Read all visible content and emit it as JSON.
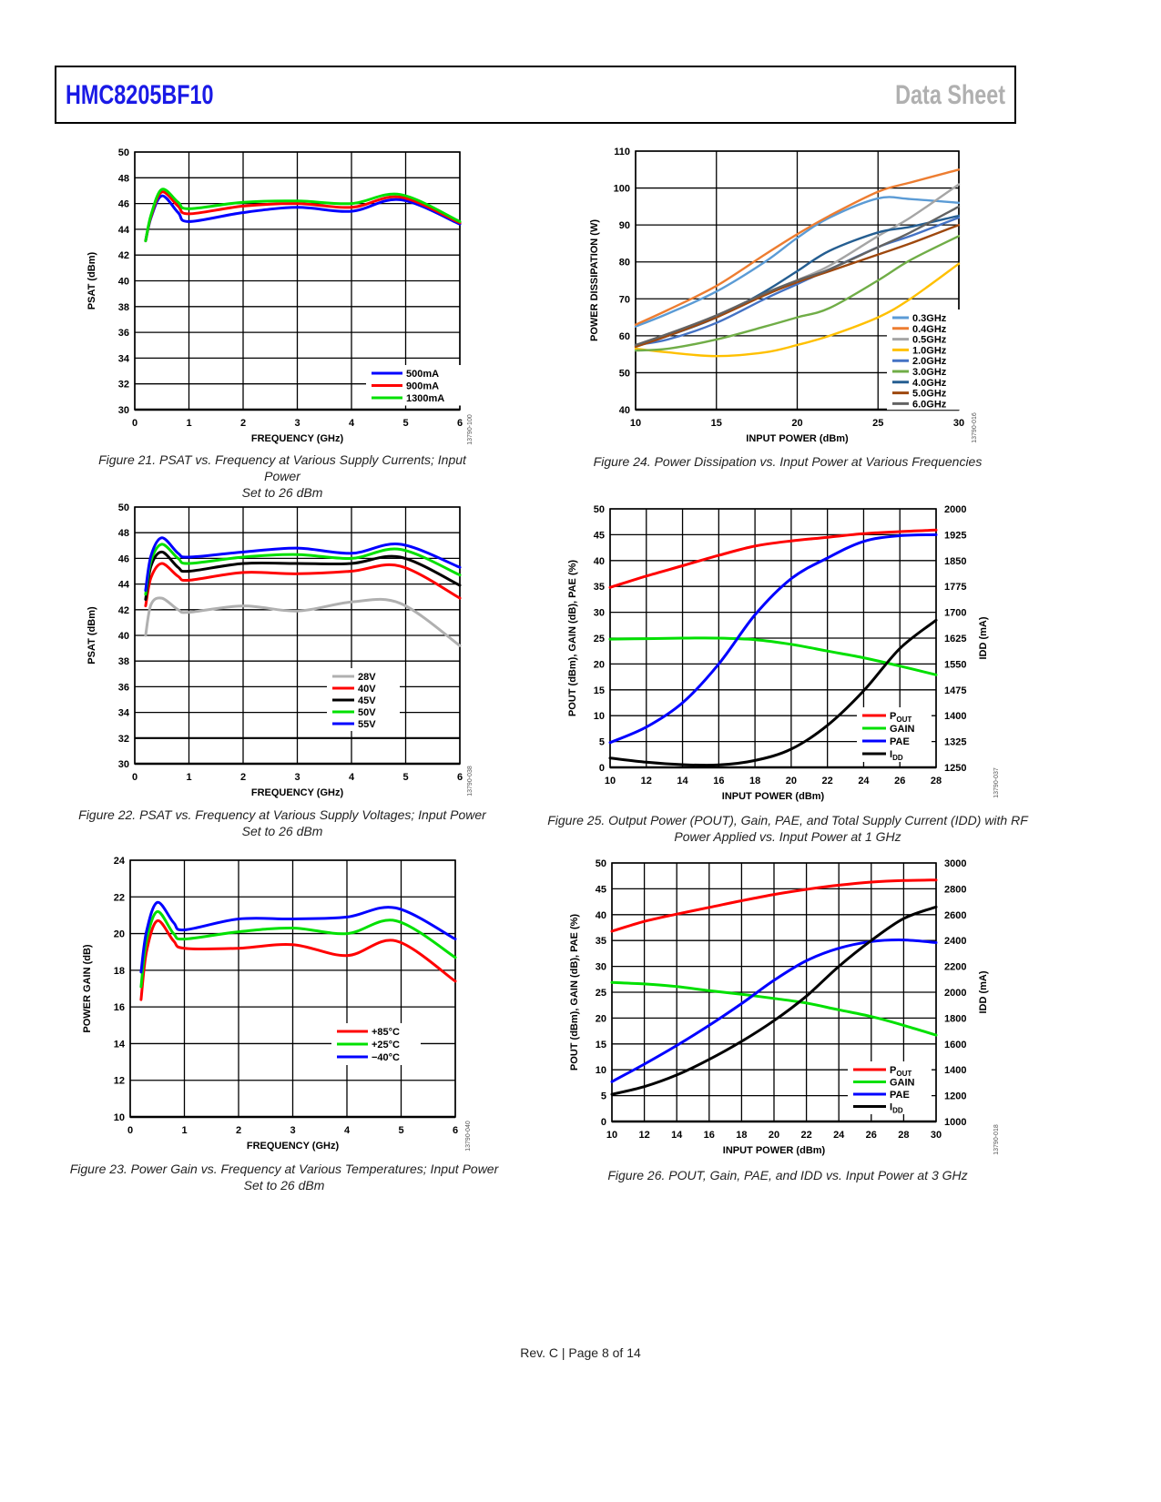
{
  "header": {
    "part_number": "HMC8205BF10",
    "doc_type": "Data Sheet"
  },
  "footer": {
    "text": "Rev. C | Page 8 of 14"
  },
  "figures": [
    {
      "id": "fig21",
      "caption_line1": "Figure 21. PSAT vs. Frequency at Various Supply Currents; Input Power",
      "caption_line2": "Set to 26 dBm",
      "code": "13790-100"
    },
    {
      "id": "fig22",
      "caption_line1": "Figure 22. PSAT vs. Frequency at Various Supply Voltages; Input Power",
      "caption_line2": "Set to 26 dBm",
      "code": "13790-038"
    },
    {
      "id": "fig23",
      "caption_line1": "Figure 23. Power Gain vs. Frequency at Various Temperatures; Input Power",
      "caption_line2": "Set to 26 dBm",
      "code": "13790-040"
    },
    {
      "id": "fig24",
      "caption_line1": "Figure 24. Power Dissipation vs. Input Power at Various Frequencies",
      "caption_line2": "",
      "code": "13790-016"
    },
    {
      "id": "fig25",
      "caption_line1": "Figure 25. Output Power (POUT), Gain, PAE, and Total Supply Current (IDD) with RF",
      "caption_line2": "Power Applied vs. Input Power at 1 GHz",
      "code": "13790-037"
    },
    {
      "id": "fig26",
      "caption_line1": "Figure 26. POUT, Gain, PAE, and IDD vs. Input Power at 3 GHz",
      "caption_line2": "",
      "code": "13790-018"
    }
  ],
  "chart_data": [
    {
      "id": "fig21",
      "type": "line",
      "title": "",
      "xlabel": "FREQUENCY (GHz)",
      "ylabel": "PSAT (dBm)",
      "xlim": [
        0,
        6
      ],
      "ylim": [
        30,
        50
      ],
      "xticks": [
        0,
        1,
        2,
        3,
        4,
        5,
        6
      ],
      "yticks": [
        30,
        32,
        34,
        36,
        38,
        40,
        42,
        44,
        46,
        48,
        50
      ],
      "grid": true,
      "legend": "bottom-right",
      "x": [
        0.2,
        0.3,
        0.5,
        0.8,
        1,
        2,
        3,
        4,
        4.9,
        6
      ],
      "series": [
        {
          "name": "500mA",
          "color": "#0000ff",
          "values": [
            43.1,
            44.9,
            46.6,
            45.3,
            44.6,
            45.3,
            45.7,
            45.4,
            46.3,
            44.4
          ]
        },
        {
          "name": "900mA",
          "color": "#ff0000",
          "values": [
            43.1,
            45.0,
            46.9,
            45.8,
            45.2,
            45.8,
            46.0,
            45.7,
            46.5,
            44.5
          ]
        },
        {
          "name": "1300mA",
          "color": "#00e000",
          "values": [
            43.1,
            45.1,
            47.1,
            46.1,
            45.6,
            46.1,
            46.2,
            46.0,
            46.7,
            44.6
          ]
        }
      ]
    },
    {
      "id": "fig22",
      "type": "line",
      "title": "",
      "xlabel": "FREQUENCY (GHz)",
      "ylabel": "PSAT (dBm)",
      "xlim": [
        0,
        6
      ],
      "ylim": [
        30,
        50
      ],
      "xticks": [
        0,
        1,
        2,
        3,
        4,
        5,
        6
      ],
      "yticks": [
        30,
        32,
        34,
        36,
        38,
        40,
        42,
        44,
        46,
        48,
        50
      ],
      "grid": true,
      "legend": "center-bottom",
      "x": [
        0.2,
        0.3,
        0.5,
        0.8,
        1,
        2,
        3,
        4,
        4.9,
        6
      ],
      "series": [
        {
          "name": "28V",
          "color": "#b0b0b0",
          "values": [
            40.0,
            42.4,
            42.9,
            42.0,
            41.8,
            42.3,
            41.9,
            42.6,
            42.5,
            39.2
          ]
        },
        {
          "name": "40V",
          "color": "#ff0000",
          "values": [
            42.3,
            44.5,
            45.6,
            44.6,
            44.3,
            44.9,
            44.8,
            45.0,
            45.4,
            42.9
          ]
        },
        {
          "name": "45V",
          "color": "#000000",
          "values": [
            42.8,
            45.4,
            46.5,
            45.3,
            45.0,
            45.6,
            45.6,
            45.6,
            46.1,
            43.9
          ]
        },
        {
          "name": "50V",
          "color": "#00e000",
          "values": [
            43.2,
            45.8,
            47.1,
            46.0,
            45.6,
            46.1,
            46.3,
            46.0,
            46.7,
            44.7
          ]
        },
        {
          "name": "55V",
          "color": "#0000ff",
          "values": [
            43.5,
            46.2,
            47.6,
            46.4,
            46.1,
            46.5,
            46.8,
            46.4,
            47.1,
            45.3
          ]
        }
      ]
    },
    {
      "id": "fig23",
      "type": "line",
      "title": "",
      "xlabel": "FREQUENCY (GHz)",
      "ylabel": "POWER GAIN (dB)",
      "xlim": [
        0,
        6
      ],
      "ylim": [
        10,
        24
      ],
      "xticks": [
        0,
        1,
        2,
        3,
        4,
        5,
        6
      ],
      "yticks": [
        10,
        12,
        14,
        16,
        18,
        20,
        22,
        24
      ],
      "grid": true,
      "legend": "center-bottom",
      "x": [
        0.2,
        0.3,
        0.5,
        0.8,
        1,
        2,
        3,
        4,
        4.9,
        6
      ],
      "series": [
        {
          "name": "+85°C",
          "color": "#ff0000",
          "values": [
            16.4,
            19.0,
            20.7,
            19.6,
            19.2,
            19.2,
            19.4,
            18.8,
            19.6,
            17.4
          ]
        },
        {
          "name": "+25°C",
          "color": "#00e000",
          "values": [
            17.1,
            19.6,
            21.2,
            20.0,
            19.7,
            20.1,
            20.3,
            20.0,
            20.7,
            18.7
          ]
        },
        {
          "name": "−40°C",
          "color": "#0000ff",
          "values": [
            17.9,
            20.1,
            21.7,
            20.6,
            20.2,
            20.8,
            20.8,
            20.9,
            21.4,
            19.7
          ]
        }
      ]
    },
    {
      "id": "fig24",
      "type": "line",
      "title": "",
      "xlabel": "INPUT POWER (dBm)",
      "ylabel": "POWER DISSIPATION (W)",
      "xlim": [
        10,
        30
      ],
      "ylim": [
        40,
        110
      ],
      "xticks": [
        10,
        15,
        20,
        25,
        30
      ],
      "yticks": [
        40,
        50,
        60,
        70,
        80,
        90,
        100,
        110
      ],
      "grid": true,
      "legend": "bottom-right",
      "x": [
        10,
        12,
        15,
        18,
        20,
        22,
        25,
        27,
        30
      ],
      "series": [
        {
          "name": "0.3GHz",
          "color": "#5b9bd5",
          "values": [
            62.5,
            66,
            72,
            80,
            86.5,
            92,
            97.2,
            97,
            96
          ]
        },
        {
          "name": "0.4GHz",
          "color": "#ed7d31",
          "values": [
            63,
            67,
            73.5,
            82,
            87.5,
            92.5,
            99,
            101.5,
            105
          ]
        },
        {
          "name": "0.5GHz",
          "color": "#a5a5a5",
          "values": [
            57,
            60,
            65.5,
            71,
            75,
            79,
            87,
            92,
            101
          ]
        },
        {
          "name": "1.0GHz",
          "color": "#ffc000",
          "values": [
            56.5,
            55.5,
            54.5,
            55.5,
            57.5,
            60,
            65,
            70,
            79.5
          ]
        },
        {
          "name": "2.0GHz",
          "color": "#4472c4",
          "values": [
            57.5,
            59,
            63.5,
            70,
            74,
            78,
            84,
            87,
            92
          ]
        },
        {
          "name": "3.0GHz",
          "color": "#70ad47",
          "values": [
            56,
            56.5,
            59,
            62.5,
            65,
            67.5,
            75,
            80.5,
            87
          ]
        },
        {
          "name": "4.0GHz",
          "color": "#255e91",
          "values": [
            57.5,
            60,
            65,
            72,
            77.5,
            83,
            88,
            89.5,
            92.5
          ]
        },
        {
          "name": "5.0GHz",
          "color": "#9e480e",
          "values": [
            57,
            60,
            65,
            71,
            74.5,
            77.5,
            82,
            85,
            90
          ]
        },
        {
          "name": "6.0GHz",
          "color": "#636363",
          "values": [
            57.5,
            60.5,
            65.5,
            71.5,
            75,
            78,
            84,
            88,
            95
          ]
        }
      ]
    },
    {
      "id": "fig25",
      "type": "line",
      "title": "",
      "xlabel": "INPUT POWER (dBm)",
      "ylabel": "POUT (dBm), GAIN (dB), PAE (%)",
      "y2label": "IDD (mA)",
      "xlim": [
        10,
        28
      ],
      "ylim": [
        0,
        50
      ],
      "y2lim": [
        1250,
        2000
      ],
      "xticks": [
        10,
        12,
        14,
        16,
        18,
        20,
        22,
        24,
        26,
        28
      ],
      "yticks": [
        0,
        5,
        10,
        15,
        20,
        25,
        30,
        35,
        40,
        45,
        50
      ],
      "y2ticks": [
        1250,
        1325,
        1400,
        1475,
        1550,
        1625,
        1700,
        1775,
        1850,
        1925,
        2000
      ],
      "grid": true,
      "legend": "bottom-right",
      "x": [
        10,
        12,
        14,
        16,
        18,
        20,
        22,
        24,
        26,
        28
      ],
      "series": [
        {
          "name": "POUT",
          "axis": "left",
          "color": "#ff0000",
          "values": [
            34.8,
            37,
            39,
            41,
            42.8,
            43.8,
            44.5,
            45.2,
            45.6,
            45.9
          ]
        },
        {
          "name": "GAIN",
          "axis": "left",
          "color": "#00e000",
          "values": [
            24.8,
            24.9,
            25,
            25,
            24.7,
            23.8,
            22.5,
            21.2,
            19.6,
            17.9
          ]
        },
        {
          "name": "PAE",
          "axis": "left",
          "color": "#0000ff",
          "values": [
            4.8,
            7.8,
            12.5,
            20,
            29.5,
            36.5,
            40.5,
            43.7,
            44.8,
            45
          ]
        },
        {
          "name": "IDD",
          "axis": "right",
          "color": "#000000",
          "values": [
            1277,
            1265,
            1258,
            1257,
            1270,
            1303,
            1372,
            1472,
            1595,
            1677
          ]
        }
      ]
    },
    {
      "id": "fig26",
      "type": "line",
      "title": "",
      "xlabel": "INPUT POWER (dBm)",
      "ylabel": "POUT (dBm), GAIN (dB), PAE (%)",
      "y2label": "IDD (mA)",
      "xlim": [
        10,
        30
      ],
      "ylim": [
        0,
        50
      ],
      "y2lim": [
        1000,
        3000
      ],
      "xticks": [
        10,
        12,
        14,
        16,
        18,
        20,
        22,
        24,
        26,
        28,
        30
      ],
      "yticks": [
        0,
        5,
        10,
        15,
        20,
        25,
        30,
        35,
        40,
        45,
        50
      ],
      "y2ticks": [
        1000,
        1200,
        1400,
        1600,
        1800,
        2000,
        2200,
        2400,
        2600,
        2800,
        3000
      ],
      "grid": true,
      "legend": "bottom-right",
      "x": [
        10,
        12,
        14,
        16,
        18,
        20,
        22,
        24,
        26,
        28,
        30
      ],
      "series": [
        {
          "name": "POUT",
          "axis": "left",
          "color": "#ff0000",
          "values": [
            36.8,
            38.7,
            40.1,
            41.4,
            42.7,
            43.9,
            44.9,
            45.7,
            46.3,
            46.6,
            46.7
          ]
        },
        {
          "name": "GAIN",
          "axis": "left",
          "color": "#00e000",
          "values": [
            26.9,
            26.6,
            26.1,
            25.3,
            24.6,
            23.8,
            22.9,
            21.6,
            20.3,
            18.6,
            16.7
          ]
        },
        {
          "name": "PAE",
          "axis": "left",
          "color": "#0000ff",
          "values": [
            7.7,
            11.1,
            14.7,
            18.6,
            22.8,
            27.3,
            31.1,
            33.5,
            34.8,
            35.1,
            34.6
          ]
        },
        {
          "name": "IDD",
          "axis": "right",
          "color": "#000000",
          "values": [
            1210,
            1270,
            1360,
            1480,
            1620,
            1780,
            1970,
            2200,
            2400,
            2570,
            2660
          ]
        }
      ]
    }
  ],
  "legend_labels": {
    "fig25": [
      {
        "main": "P",
        "sub": "OUT"
      },
      {
        "main": "GAIN",
        "sub": ""
      },
      {
        "main": "PAE",
        "sub": ""
      },
      {
        "main": "I",
        "sub": "DD"
      }
    ],
    "fig26": [
      {
        "main": "P",
        "sub": "OUT"
      },
      {
        "main": "GAIN",
        "sub": ""
      },
      {
        "main": "PAE",
        "sub": ""
      },
      {
        "main": "I",
        "sub": "DD"
      }
    ]
  }
}
